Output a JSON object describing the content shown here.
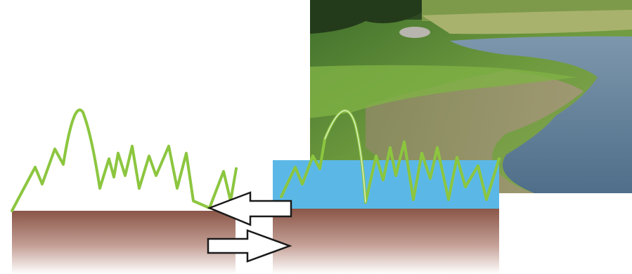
{
  "diagram": {
    "description_text": "",
    "colors": {
      "background": "#ffffff",
      "vegetation": "#8cc63f",
      "water": "#5bb8e6",
      "soil_top": "#8a5648",
      "soil_bottom": "#ffffff",
      "arrow_fill": "#ffffff",
      "arrow_stroke": "#1a1a1a"
    },
    "panels": [
      {
        "name": "dry-soil-panel",
        "has_water": false
      },
      {
        "name": "flooded-soil-panel",
        "has_water": true
      }
    ],
    "arrows": [
      {
        "name": "arrow-left",
        "direction": "left"
      },
      {
        "name": "arrow-right",
        "direction": "right"
      }
    ],
    "photo": {
      "subject": "wetland-shoreline-photo"
    }
  }
}
